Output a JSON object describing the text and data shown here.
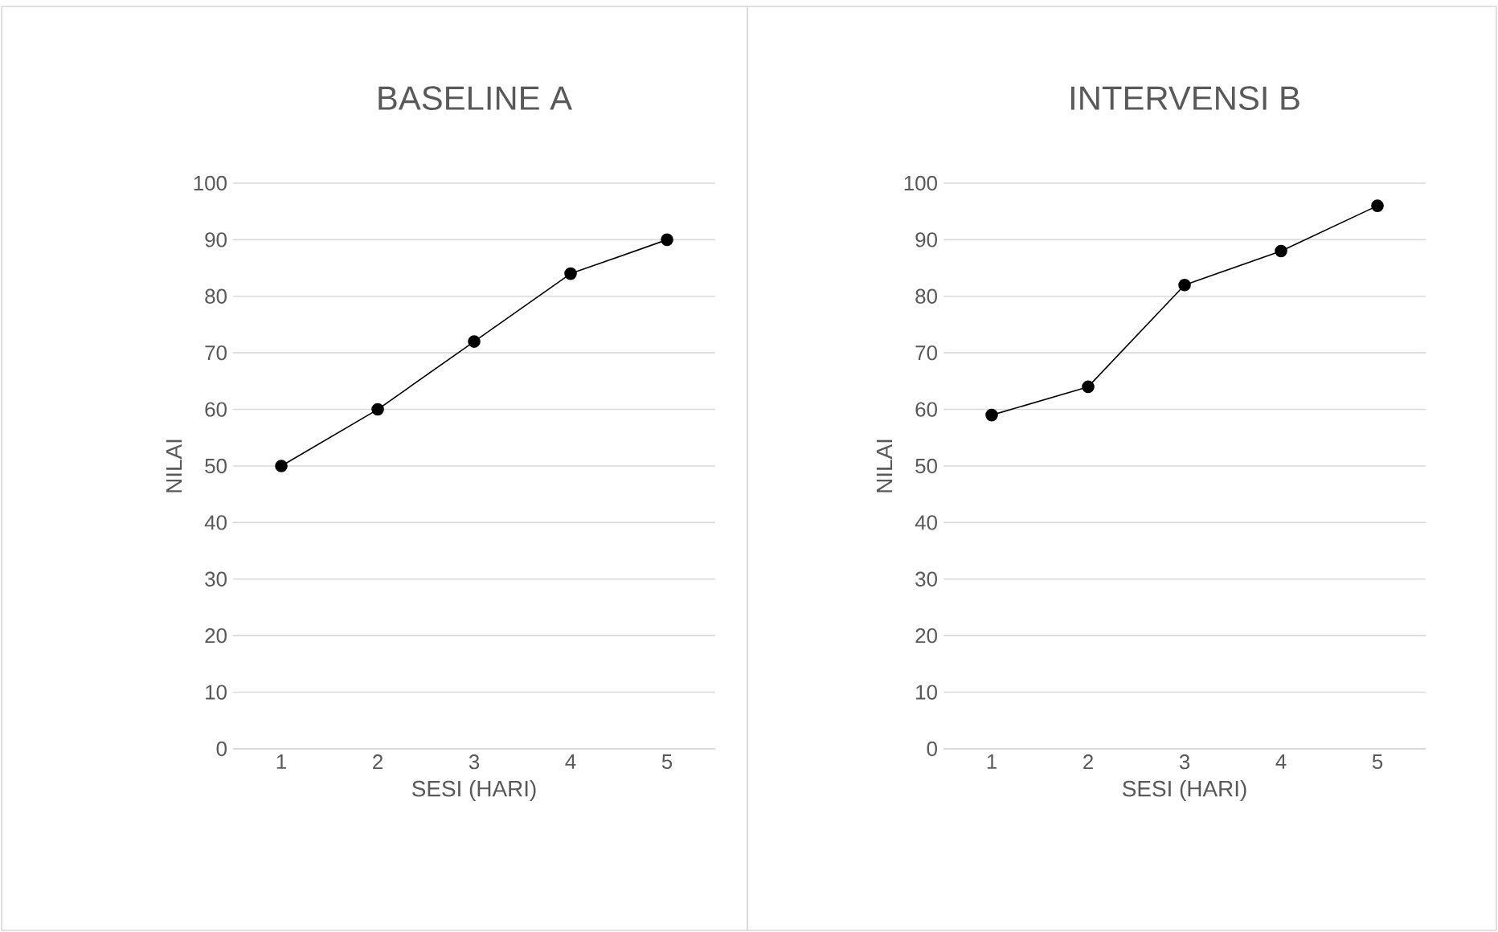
{
  "chart_data": [
    {
      "type": "line",
      "title": "BASELINE A",
      "xlabel": "SESI (HARI)",
      "ylabel": "NILAI",
      "categories": [
        "1",
        "2",
        "3",
        "4",
        "5"
      ],
      "values": [
        50,
        60,
        72,
        84,
        90
      ],
      "color": "#000000",
      "ylim": [
        0,
        100
      ],
      "yticks": [
        0,
        10,
        20,
        30,
        40,
        50,
        60,
        70,
        80,
        90,
        100
      ],
      "grid": "y",
      "marker": "circle"
    },
    {
      "type": "line",
      "title": "INTERVENSI B",
      "xlabel": "SESI (HARI)",
      "ylabel": "NILAI",
      "categories": [
        "1",
        "2",
        "3",
        "4",
        "5"
      ],
      "values": [
        59,
        64,
        82,
        88,
        96
      ],
      "color": "#000000",
      "ylim": [
        0,
        100
      ],
      "yticks": [
        0,
        10,
        20,
        30,
        40,
        50,
        60,
        70,
        80,
        90,
        100
      ],
      "grid": "y",
      "marker": "circle"
    }
  ]
}
